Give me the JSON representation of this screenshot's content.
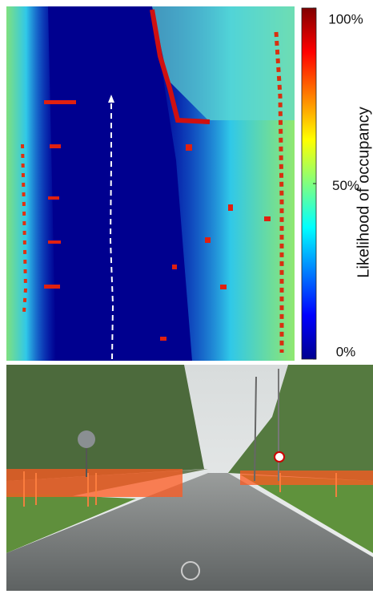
{
  "colorbar": {
    "label": "Likelihood of occupancy",
    "range": [
      0,
      100
    ],
    "ticks": [
      {
        "value": 100,
        "label": "100%"
      },
      {
        "value": 50,
        "label": "50%"
      },
      {
        "value": 0,
        "label": "0%"
      }
    ]
  }
}
